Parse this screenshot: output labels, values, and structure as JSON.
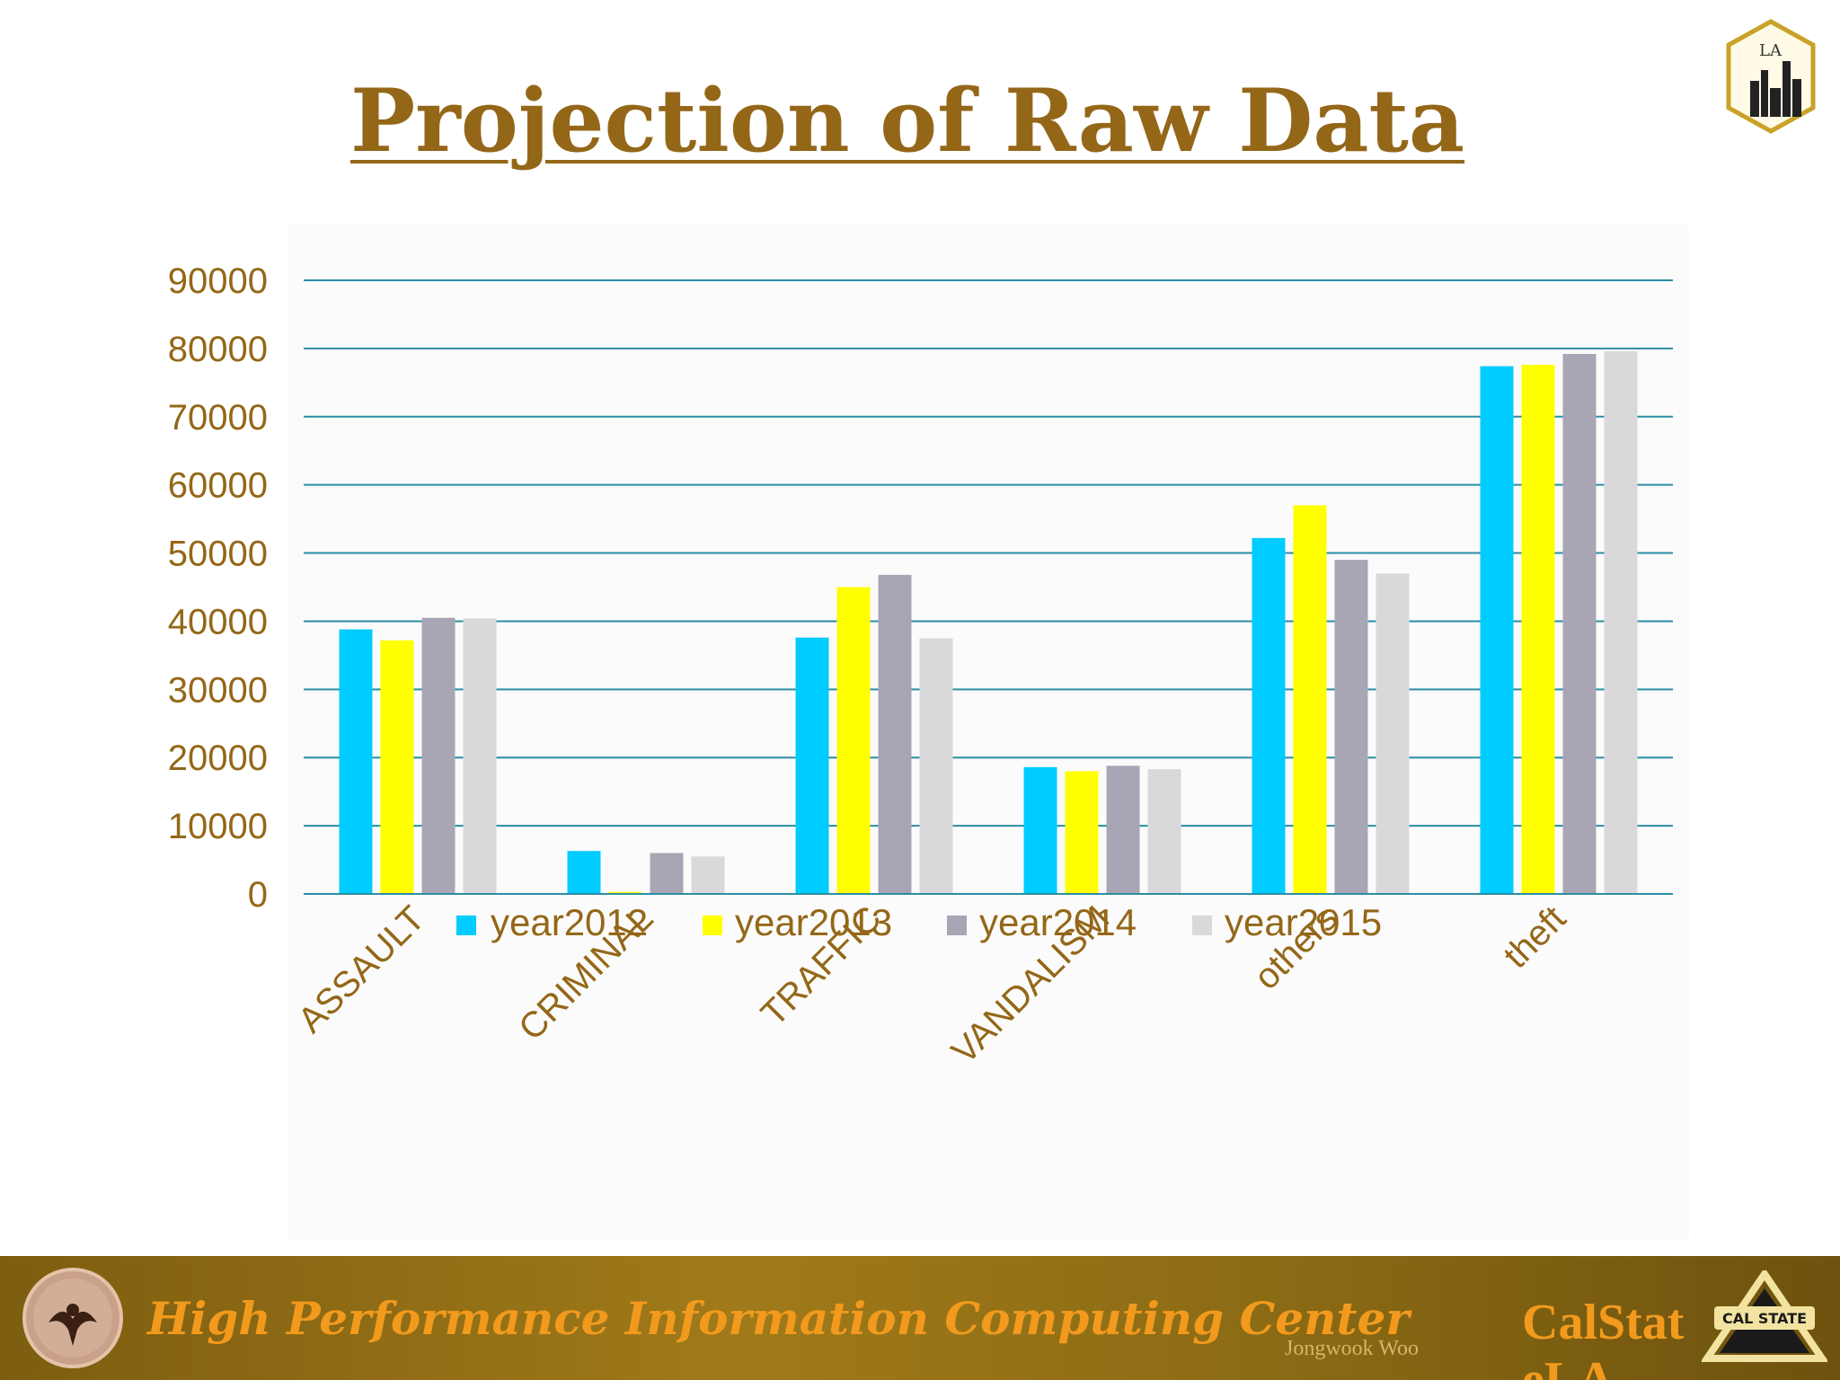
{
  "slide": {
    "title": "Projection of Raw Data"
  },
  "footer": {
    "center_name": "High Performance Information Computing Center",
    "author": "Jongwook Woo",
    "org_line1": "CalStat",
    "org_line2": "eLA",
    "logo_text": "LA",
    "calstate_text": "CAL STATE"
  },
  "colors": {
    "title": "#946718",
    "axis_text": "#946718",
    "gridline": "#2b8ea3",
    "year2012": "#00ccff",
    "year2013": "#ffff00",
    "year2014": "#a8a6b5",
    "year2015": "#d9d9dc",
    "footer_text": "#f29a1d"
  },
  "chart_data": {
    "type": "bar",
    "title": "",
    "xlabel": "",
    "ylabel": "",
    "ylim": [
      0,
      90000
    ],
    "yticks": [
      0,
      10000,
      20000,
      30000,
      40000,
      50000,
      60000,
      70000,
      80000,
      90000
    ],
    "grid": true,
    "legend_position": "bottom",
    "categories": [
      "ASSAULT",
      "CRIMINAL",
      "TRAFFIC",
      "VANDALISM",
      "others",
      "theft"
    ],
    "series": [
      {
        "name": "year2012",
        "values": [
          38800,
          6300,
          37600,
          18600,
          52200,
          77400
        ]
      },
      {
        "name": "year2013",
        "values": [
          37200,
          300,
          45000,
          18000,
          57000,
          77600
        ]
      },
      {
        "name": "year2014",
        "values": [
          40500,
          6000,
          46800,
          18800,
          49000,
          79200
        ]
      },
      {
        "name": "year2015",
        "values": [
          40400,
          5500,
          37500,
          18300,
          47000,
          79600
        ]
      }
    ]
  }
}
